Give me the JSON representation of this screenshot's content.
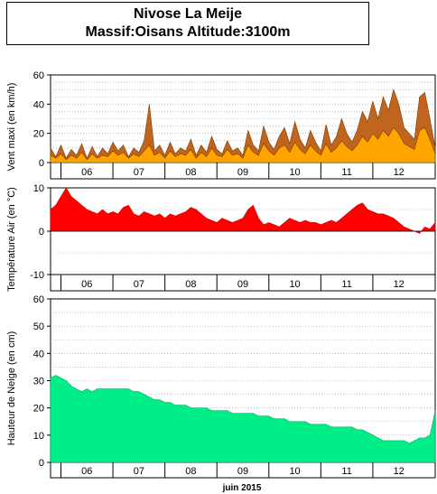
{
  "title": {
    "line1": "Nivose La Meije",
    "line2": "Massif:Oisans Altitude:3100m"
  },
  "xlabel": "juin 2015",
  "month_labels": [
    "06",
    "07",
    "08",
    "09",
    "10",
    "11",
    "12"
  ],
  "chart_data": [
    {
      "type": "area",
      "ylabel": "Vent maxi (en km/h)",
      "ylim": [
        0,
        60
      ],
      "yticks": [
        0,
        20,
        40,
        60
      ],
      "grid": true,
      "colors": {
        "fill": "#ffa500",
        "fill_max": "#c0641e",
        "line": "#7a3c00"
      },
      "series": [
        {
          "x": [
            5.3,
            5.4,
            5.5,
            5.6,
            5.7,
            5.8,
            5.9,
            6.0,
            6.1,
            6.2,
            6.3,
            6.4,
            6.5,
            6.6,
            6.7,
            6.8,
            6.9,
            7.0,
            7.1,
            7.2,
            7.3,
            7.4,
            7.5,
            7.6,
            7.7,
            7.8,
            7.9,
            8.0,
            8.1,
            8.2,
            8.3,
            8.4,
            8.5,
            8.6,
            8.7,
            8.8,
            8.9,
            9.0,
            9.1,
            9.2,
            9.3,
            9.4,
            9.5,
            9.6,
            9.7,
            9.8,
            9.9,
            10.0,
            10.1,
            10.2,
            10.3,
            10.4,
            10.5,
            10.6,
            10.7,
            10.8,
            10.9,
            11.0,
            11.1,
            11.2,
            11.3,
            11.4,
            11.5,
            11.6,
            11.7,
            11.8,
            11.9,
            12.0,
            12.1,
            12.2,
            12.3,
            12.4,
            12.5,
            12.6,
            12.7
          ],
          "values": [
            10,
            4,
            12,
            3,
            9,
            5,
            13,
            3,
            11,
            4,
            10,
            6,
            14,
            8,
            12,
            4,
            10,
            7,
            15,
            40,
            8,
            12,
            5,
            14,
            6,
            10,
            8,
            16,
            5,
            12,
            7,
            18,
            9,
            6,
            15,
            8,
            10,
            5,
            22,
            12,
            8,
            25,
            14,
            9,
            18,
            24,
            13,
            28,
            16,
            10,
            22,
            14,
            8,
            26,
            12,
            18,
            30,
            20,
            14,
            22,
            35,
            28,
            42,
            30,
            45,
            36,
            50,
            40,
            24,
            20,
            16,
            45,
            48,
            30,
            10
          ]
        },
        {
          "x": [
            5.3,
            5.4,
            5.5,
            5.6,
            5.7,
            5.8,
            5.9,
            6.0,
            6.1,
            6.2,
            6.3,
            6.4,
            6.5,
            6.6,
            6.7,
            6.8,
            6.9,
            7.0,
            7.1,
            7.2,
            7.3,
            7.4,
            7.5,
            7.6,
            7.7,
            7.8,
            7.9,
            8.0,
            8.1,
            8.2,
            8.3,
            8.4,
            8.5,
            8.6,
            8.7,
            8.8,
            8.9,
            9.0,
            9.1,
            9.2,
            9.3,
            9.4,
            9.5,
            9.6,
            9.7,
            9.8,
            9.9,
            10.0,
            10.1,
            10.2,
            10.3,
            10.4,
            10.5,
            10.6,
            10.7,
            10.8,
            10.9,
            11.0,
            11.1,
            11.2,
            11.3,
            11.4,
            11.5,
            11.6,
            11.7,
            11.8,
            11.9,
            12.0,
            12.1,
            12.2,
            12.3,
            12.4,
            12.5,
            12.6,
            12.7
          ],
          "values": [
            5,
            3,
            6,
            2,
            5,
            3,
            7,
            2,
            6,
            3,
            5,
            4,
            8,
            5,
            7,
            3,
            6,
            4,
            8,
            12,
            5,
            7,
            3,
            8,
            4,
            6,
            5,
            9,
            3,
            7,
            4,
            10,
            5,
            4,
            9,
            5,
            6,
            3,
            12,
            7,
            5,
            13,
            8,
            5,
            10,
            12,
            7,
            14,
            9,
            6,
            12,
            8,
            5,
            13,
            7,
            10,
            15,
            11,
            8,
            12,
            18,
            14,
            20,
            16,
            22,
            18,
            24,
            20,
            13,
            11,
            9,
            22,
            24,
            16,
            6
          ]
        }
      ]
    },
    {
      "type": "area",
      "ylabel": "Température Air (en °C)",
      "ylim": [
        -10,
        10
      ],
      "yticks": [
        -10,
        0,
        10
      ],
      "grid": true,
      "colors": {
        "fill": "#ff0000",
        "line": "#cc0000"
      },
      "series": [
        {
          "x": [
            5.3,
            5.4,
            5.5,
            5.6,
            5.7,
            5.8,
            5.9,
            6.0,
            6.1,
            6.2,
            6.3,
            6.4,
            6.5,
            6.6,
            6.7,
            6.8,
            6.9,
            7.0,
            7.1,
            7.2,
            7.3,
            7.4,
            7.5,
            7.6,
            7.7,
            7.8,
            7.9,
            8.0,
            8.1,
            8.2,
            8.3,
            8.4,
            8.5,
            8.6,
            8.7,
            8.8,
            8.9,
            9.0,
            9.1,
            9.2,
            9.3,
            9.4,
            9.5,
            9.6,
            9.7,
            9.8,
            9.9,
            10.0,
            10.1,
            10.2,
            10.3,
            10.4,
            10.5,
            10.6,
            10.7,
            10.8,
            10.9,
            11.0,
            11.1,
            11.2,
            11.3,
            11.4,
            11.5,
            11.6,
            11.7,
            11.8,
            11.9,
            12.0,
            12.1,
            12.2,
            12.3,
            12.4,
            12.5,
            12.6,
            12.7
          ],
          "values": [
            5,
            6,
            8,
            10,
            8,
            7,
            6,
            5,
            4.5,
            4,
            5,
            4,
            4.5,
            4,
            5.5,
            6,
            4,
            3.5,
            4.5,
            4,
            3.5,
            4,
            3,
            4,
            3.5,
            4,
            4.5,
            5.5,
            5,
            4,
            3,
            2.5,
            2,
            3,
            2.5,
            2,
            2.5,
            3,
            5,
            6,
            3,
            1.5,
            2,
            1.5,
            1,
            2,
            3,
            2.5,
            2,
            2.5,
            2,
            2,
            1.5,
            2,
            2.5,
            2,
            3,
            4,
            5,
            6,
            6.5,
            5,
            4.5,
            4,
            4,
            3.5,
            3,
            2,
            1,
            0.5,
            0,
            -0.5,
            1,
            0.5,
            2
          ]
        }
      ]
    },
    {
      "type": "area",
      "ylabel": "Hauteur de Neige (en cm)",
      "ylim": [
        0,
        60
      ],
      "yticks": [
        0,
        10,
        20,
        30,
        40,
        50,
        60
      ],
      "grid": true,
      "colors": {
        "fill": "#00ee88",
        "line": "#00b060"
      },
      "series": [
        {
          "x": [
            5.3,
            5.4,
            5.5,
            5.6,
            5.7,
            5.8,
            5.9,
            6.0,
            6.1,
            6.2,
            6.3,
            6.4,
            6.5,
            6.6,
            6.7,
            6.8,
            6.9,
            7.0,
            7.1,
            7.2,
            7.3,
            7.4,
            7.5,
            7.6,
            7.7,
            7.8,
            7.9,
            8.0,
            8.1,
            8.2,
            8.3,
            8.4,
            8.5,
            8.6,
            8.7,
            8.8,
            8.9,
            9.0,
            9.1,
            9.2,
            9.3,
            9.4,
            9.5,
            9.6,
            9.7,
            9.8,
            9.9,
            10.0,
            10.1,
            10.2,
            10.3,
            10.4,
            10.5,
            10.6,
            10.7,
            10.8,
            10.9,
            11.0,
            11.1,
            11.2,
            11.3,
            11.4,
            11.5,
            11.6,
            11.7,
            11.8,
            11.9,
            12.0,
            12.1,
            12.2,
            12.3,
            12.4,
            12.5,
            12.6,
            12.7
          ],
          "values": [
            31,
            32,
            31,
            30,
            28,
            27,
            26,
            27,
            26,
            27,
            27,
            27,
            27,
            27,
            27,
            27,
            26,
            26,
            25,
            24,
            23,
            23,
            22,
            22,
            21,
            21,
            21,
            20,
            20,
            20,
            20,
            19,
            19,
            19,
            19,
            18,
            18,
            18,
            18,
            18,
            17,
            17,
            17,
            16,
            16,
            16,
            15,
            15,
            15,
            15,
            14,
            14,
            14,
            14,
            13,
            13,
            13,
            13,
            13,
            12,
            12,
            11,
            10,
            9,
            8,
            8,
            8,
            8,
            8,
            7,
            8,
            9,
            9,
            10,
            19
          ]
        }
      ]
    }
  ]
}
